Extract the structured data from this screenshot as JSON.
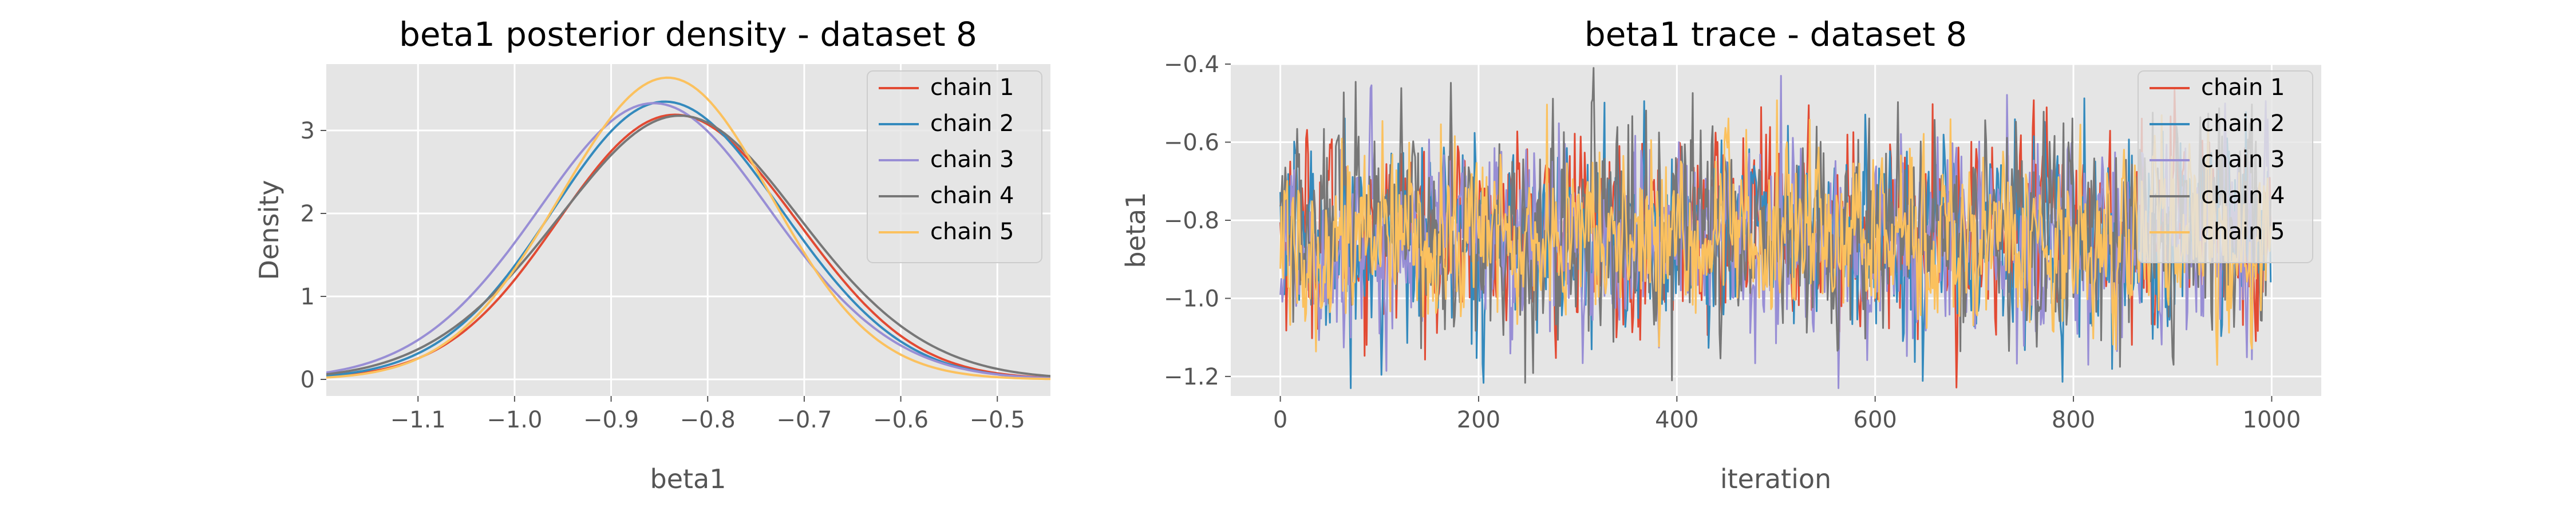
{
  "colors": {
    "panel_bg": "#e5e5e5",
    "grid": "#ffffff",
    "tick_text": "#555555",
    "chain_colors": [
      "#e24a33",
      "#348abd",
      "#988ed5",
      "#777777",
      "#fbc15e"
    ]
  },
  "chart_data": [
    {
      "type": "line",
      "title": "beta1 posterior density - dataset 8",
      "xlabel": "beta1",
      "ylabel": "Density",
      "xlim": [
        -1.195,
        -0.445
      ],
      "ylim": [
        -0.2,
        3.8
      ],
      "xticks": [
        -1.1,
        -1.0,
        -0.9,
        -0.8,
        -0.7,
        -0.6,
        -0.5
      ],
      "xtick_labels": [
        "−1.1",
        "−1.0",
        "−0.9",
        "−0.8",
        "−0.7",
        "−0.6",
        "−0.5"
      ],
      "yticks": [
        0,
        1,
        2,
        3
      ],
      "ytick_labels": [
        "0",
        "1",
        "2",
        "3"
      ],
      "grid": true,
      "legend": "top-right",
      "series": [
        {
          "name": "chain 1",
          "mean": -0.83,
          "sd": 0.12,
          "peak": 3.23
        },
        {
          "name": "chain 2",
          "mean": -0.84,
          "sd": 0.12,
          "peak": 3.33
        },
        {
          "name": "chain 3",
          "mean": -0.855,
          "sd": 0.125,
          "peak": 3.27
        },
        {
          "name": "chain 4",
          "mean": -0.83,
          "sd": 0.13,
          "peak": 3.12
        },
        {
          "name": "chain 5",
          "mean": -0.845,
          "sd": 0.11,
          "peak": 3.62
        }
      ]
    },
    {
      "type": "line",
      "title": "beta1 trace - dataset 8",
      "xlabel": "iteration",
      "ylabel": "beta1",
      "xlim": [
        -50,
        1050
      ],
      "ylim": [
        -1.25,
        -0.4
      ],
      "xticks": [
        0,
        200,
        400,
        600,
        800,
        1000
      ],
      "xtick_labels": [
        "0",
        "200",
        "400",
        "600",
        "800",
        "1000"
      ],
      "yticks": [
        -1.2,
        -1.0,
        -0.8,
        -0.6,
        -0.4
      ],
      "ytick_labels": [
        "−1.2",
        "−1.0",
        "−0.8",
        "−0.6",
        "−0.4"
      ],
      "grid": true,
      "legend": "top-right",
      "iterations": 1000,
      "series": [
        {
          "name": "chain 1",
          "mean": -0.83,
          "sd": 0.12
        },
        {
          "name": "chain 2",
          "mean": -0.84,
          "sd": 0.12
        },
        {
          "name": "chain 3",
          "mean": -0.855,
          "sd": 0.125
        },
        {
          "name": "chain 4",
          "mean": -0.83,
          "sd": 0.13
        },
        {
          "name": "chain 5",
          "mean": -0.845,
          "sd": 0.11
        }
      ],
      "annotated_extremes": [
        {
          "series": "chain 4",
          "iteration": 395,
          "value": -1.21
        },
        {
          "series": "chain 3",
          "iteration": 505,
          "value": -0.43
        },
        {
          "series": "chain 3",
          "iteration": 815,
          "value": -1.17
        },
        {
          "series": "chain 4",
          "iteration": 315,
          "value": -0.49
        }
      ]
    }
  ]
}
